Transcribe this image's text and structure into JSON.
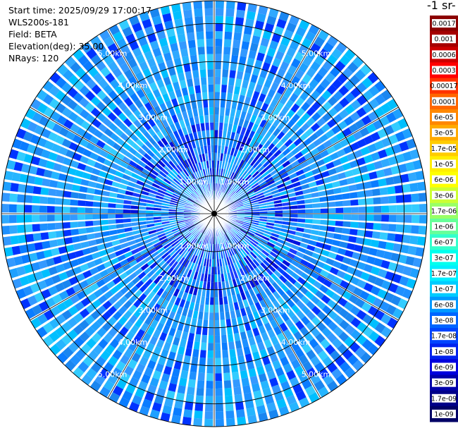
{
  "header": {
    "start_time": "Start time: 2025/09/29 17:00:17",
    "instrument": "WLS200s-181",
    "field": "Field: BETA",
    "elevation": "Elevation(deg): 35.00",
    "nrays": "NRays: 120"
  },
  "colorbar": {
    "title": "-1 sr-",
    "ticks": [
      "0.0017",
      "0.001",
      "0.0006",
      "0.0003",
      "0.00017",
      "0.0001",
      "6e-05",
      "3e-05",
      "1.7e-05",
      "1e-05",
      "6e-06",
      "3e-06",
      "1.7e-06",
      "1e-06",
      "6e-07",
      "3e-07",
      "1.7e-07",
      "1e-07",
      "6e-08",
      "3e-08",
      "1.7e-08",
      "1e-08",
      "6e-09",
      "3e-09",
      "1.7e-09",
      "1e-09"
    ],
    "colors": [
      "#8b0000",
      "#a50000",
      "#cc0000",
      "#ff0000",
      "#ff3300",
      "#ff6600",
      "#ff8800",
      "#ffaa00",
      "#ffcc00",
      "#ffee00",
      "#ffff00",
      "#ccff33",
      "#99ff66",
      "#66ff99",
      "#33ffcc",
      "#00ffee",
      "#00eeff",
      "#00ccff",
      "#0099ff",
      "#0066ff",
      "#0044ff",
      "#0022ee",
      "#0000dd",
      "#0000aa",
      "#000088",
      "#000066"
    ]
  },
  "chart_data": {
    "type": "heatmap",
    "projection": "polar (PPI)",
    "range_rings_km": [
      1,
      2,
      3,
      4,
      5
    ],
    "range_labels": [
      "1.00km",
      "2.00km",
      "3.00km",
      "4.00km",
      "5.00km"
    ],
    "max_range_km": 5.6,
    "nrays": 120,
    "field": "BETA",
    "elevation_deg": 35.0
  }
}
